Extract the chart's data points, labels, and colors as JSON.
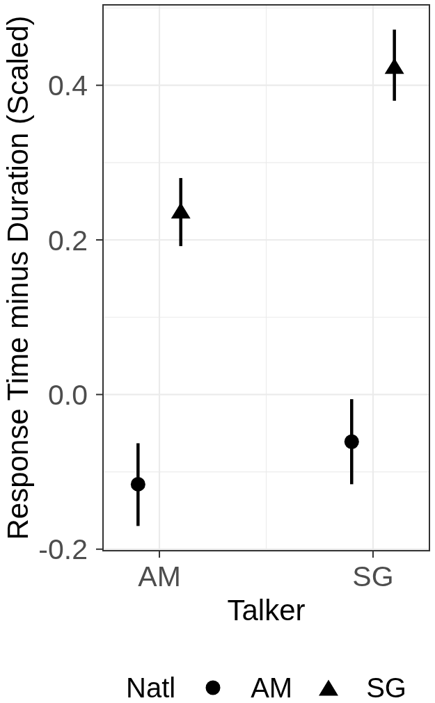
{
  "chart_data": {
    "type": "scatter",
    "categories": [
      "AM",
      "SG"
    ],
    "xlabel": "Talker",
    "ylabel": "Response Time minus Duration (Scaled)",
    "legend_title": "Natl",
    "series": [
      {
        "name": "AM",
        "color": "#000000",
        "marker": "circle",
        "values": [
          -0.116,
          -0.061
        ],
        "errors": [
          [
            -0.17,
            -0.063
          ],
          [
            -0.116,
            -0.006
          ]
        ]
      },
      {
        "name": "SG",
        "color": "#000000",
        "marker": "triangle",
        "values": [
          0.238,
          0.425
        ],
        "errors": [
          [
            0.192,
            0.28
          ],
          [
            0.38,
            0.472
          ]
        ]
      }
    ],
    "ylim": [
      -0.202,
      0.504
    ],
    "yticks": [
      -0.2,
      {
        "value": 0,
        "label": "0.0"
      },
      0.2,
      0.4
    ],
    "grid": true,
    "legend": "bottom"
  }
}
